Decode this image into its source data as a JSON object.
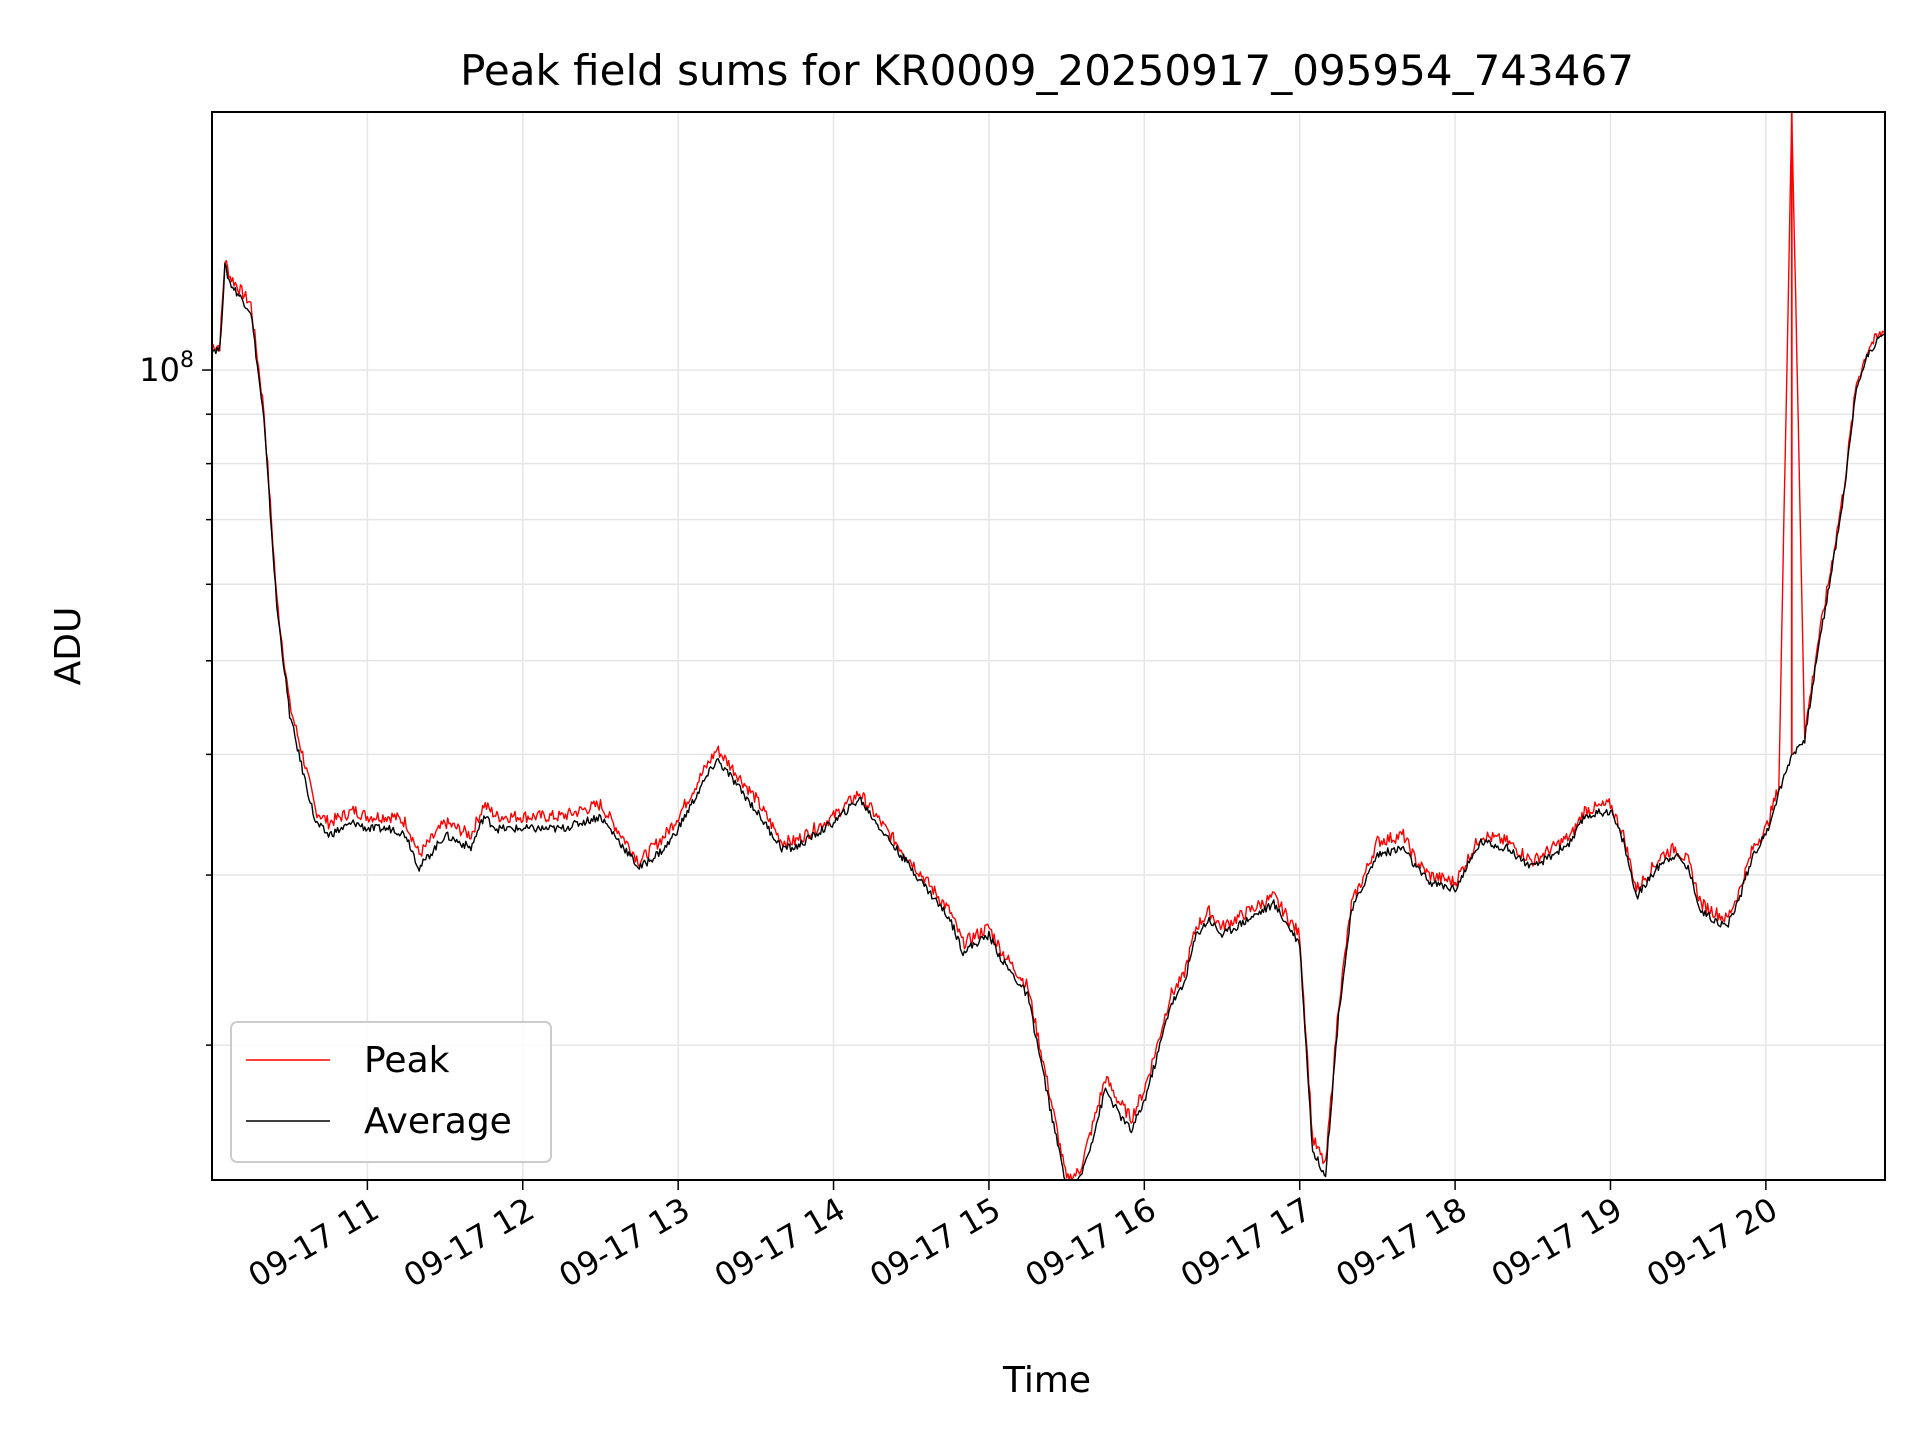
{
  "chart_data": {
    "type": "line",
    "title": "Peak field sums for KR0009_20250917_095954_743467",
    "xlabel": "Time",
    "ylabel": "ADU",
    "y_scale": "log",
    "ylim": [
      14500000,
      185000000
    ],
    "xlim": [
      "2025-09-17 10:00",
      "2025-09-17 20:46"
    ],
    "x_ticks": [
      "09-17 11",
      "09-17 12",
      "09-17 13",
      "09-17 14",
      "09-17 15",
      "09-17 16",
      "09-17 17",
      "09-17 18",
      "09-17 19",
      "09-17 20"
    ],
    "y_ticks": [
      {
        "value": 100000000,
        "label": "10",
        "exponent": "8"
      }
    ],
    "grid": true,
    "legend": "lower-left",
    "x": [
      "10:00",
      "10:03",
      "10:05",
      "10:07",
      "10:15",
      "10:20",
      "10:25",
      "10:30",
      "10:35",
      "10:40",
      "10:45",
      "10:50",
      "10:55",
      "11:00",
      "11:10",
      "11:15",
      "11:20",
      "11:30",
      "11:40",
      "11:45",
      "11:50",
      "12:00",
      "12:15",
      "12:30",
      "12:45",
      "12:55",
      "13:00",
      "13:10",
      "13:15",
      "13:20",
      "13:30",
      "13:40",
      "13:45",
      "14:00",
      "14:10",
      "14:20",
      "14:30",
      "14:45",
      "14:50",
      "15:00",
      "15:05",
      "15:15",
      "15:25",
      "15:30",
      "15:35",
      "15:40",
      "15:45",
      "15:50",
      "15:55",
      "16:00",
      "16:05",
      "16:10",
      "16:15",
      "16:20",
      "16:25",
      "16:30",
      "16:40",
      "16:50",
      "17:00",
      "17:05",
      "17:10",
      "17:15",
      "17:20",
      "17:25",
      "17:30",
      "17:40",
      "17:45",
      "17:50",
      "18:00",
      "18:10",
      "18:20",
      "18:30",
      "18:45",
      "18:50",
      "19:00",
      "19:05",
      "19:10",
      "19:20",
      "19:25",
      "19:30",
      "19:35",
      "19:45",
      "19:50",
      "19:55",
      "20:00",
      "20:05",
      "20:10",
      "20:15",
      "20:20",
      "20:25",
      "20:30",
      "20:35",
      "20:40",
      "20:46"
    ],
    "series": [
      {
        "name": "Peak",
        "color": "#ff0000",
        "values": [
          106000000,
          106000000,
          130000000,
          125000000,
          117000000,
          91000000,
          58000000,
          45000000,
          40000000,
          35000000,
          34000000,
          34500000,
          35000000,
          34500000,
          34500000,
          34000000,
          31500000,
          34000000,
          33000000,
          35500000,
          34500000,
          34500000,
          34500000,
          35500000,
          31000000,
          33000000,
          34500000,
          38500000,
          40500000,
          39000000,
          36000000,
          32500000,
          32500000,
          34500000,
          36500000,
          33500000,
          31000000,
          27500000,
          25500000,
          26500000,
          25000000,
          23000000,
          17000000,
          14500000,
          14800000,
          16500000,
          18500000,
          17500000,
          16800000,
          18000000,
          20000000,
          22500000,
          23500000,
          26500000,
          27500000,
          26500000,
          27500000,
          28500000,
          26000000,
          16000000,
          15000000,
          22000000,
          28000000,
          30000000,
          32500000,
          33000000,
          31000000,
          30000000,
          29500000,
          33000000,
          32500000,
          31000000,
          33000000,
          35000000,
          35500000,
          33000000,
          29000000,
          31500000,
          32000000,
          31000000,
          28000000,
          27000000,
          29000000,
          32000000,
          33500000,
          37000000,
          185000000,
          42000000,
          52000000,
          62000000,
          75000000,
          97000000,
          106000000,
          110000000
        ]
      },
      {
        "name": "Average",
        "color": "#000000",
        "values": [
          105000000,
          105000000,
          128000000,
          123000000,
          115000000,
          89000000,
          57000000,
          44000000,
          38500000,
          34000000,
          33000000,
          33500000,
          34000000,
          33500000,
          33500000,
          33000000,
          30500000,
          33000000,
          32000000,
          34500000,
          33500000,
          33500000,
          33500000,
          34500000,
          30500000,
          32000000,
          33500000,
          37500000,
          39500000,
          38000000,
          35000000,
          32000000,
          32000000,
          34000000,
          36000000,
          33000000,
          30500000,
          27000000,
          25000000,
          26000000,
          24500000,
          22500000,
          16500000,
          14300000,
          14500000,
          16000000,
          18000000,
          17000000,
          16300000,
          17500000,
          19500000,
          22000000,
          23000000,
          26000000,
          27000000,
          26000000,
          27000000,
          28000000,
          25500000,
          15500000,
          14700000,
          21500000,
          27500000,
          29500000,
          31500000,
          32000000,
          30500000,
          29500000,
          29000000,
          32500000,
          32000000,
          30500000,
          32500000,
          34500000,
          35000000,
          32500000,
          28500000,
          31000000,
          31500000,
          30500000,
          27500000,
          26500000,
          28500000,
          31500000,
          33000000,
          36500000,
          40000000,
          41500000,
          51000000,
          61000000,
          74000000,
          96000000,
          105000000,
          109000000
        ]
      }
    ]
  }
}
